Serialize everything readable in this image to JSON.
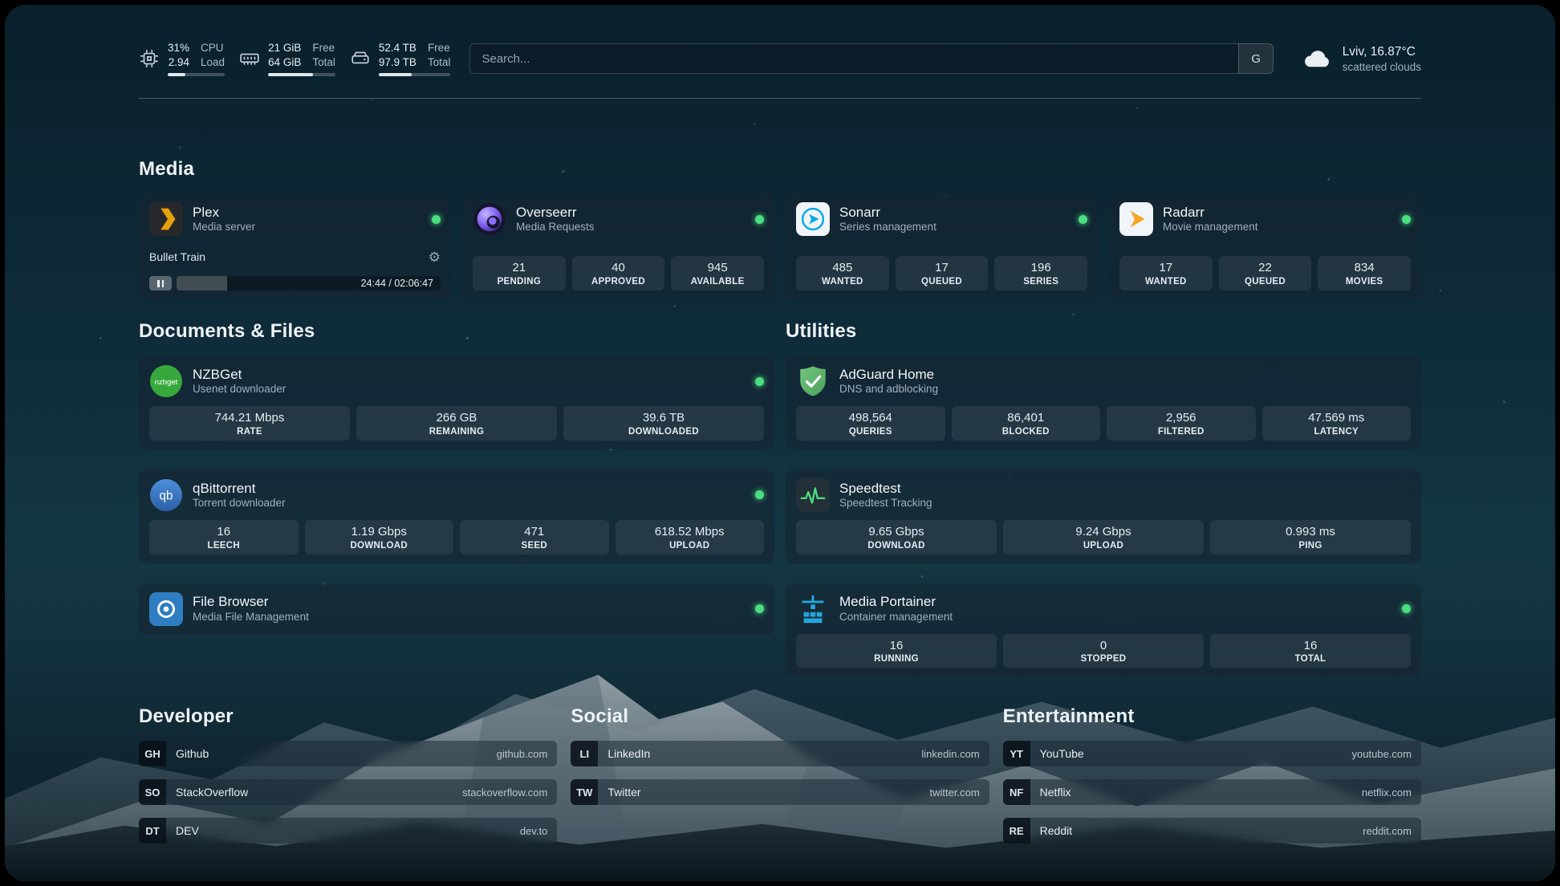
{
  "topbar": {
    "cpu": {
      "row1_value": "31%",
      "row1_label": "CPU",
      "row2_value": "2.94",
      "row2_label": "Load",
      "percent": 31
    },
    "memory": {
      "row1_value": "21 GiB",
      "row1_label": "Free",
      "row2_value": "64 GiB",
      "row2_label": "Total",
      "percent": 67
    },
    "disk": {
      "row1_value": "52.4 TB",
      "row1_label": "Free",
      "row2_value": "97.9 TB",
      "row2_label": "Total",
      "percent": 46
    },
    "search": {
      "placeholder": "Search...",
      "provider": "G"
    },
    "weather": {
      "location": "Lviv, 16.87°C",
      "condition": "scattered clouds"
    }
  },
  "sections": {
    "media": {
      "title": "Media",
      "cards": [
        {
          "name": "Plex",
          "subtitle": "Media server",
          "icon": "plex-icon",
          "online": true,
          "player": {
            "title": "Bullet Train",
            "gear_icon": "⚙",
            "time": "24:44 / 02:06:47",
            "progress_percent": 19
          }
        },
        {
          "name": "Overseerr",
          "subtitle": "Media Requests",
          "icon": "overseerr-icon",
          "online": true,
          "stats": [
            {
              "value": "21",
              "label": "PENDING"
            },
            {
              "value": "40",
              "label": "APPROVED"
            },
            {
              "value": "945",
              "label": "AVAILABLE"
            }
          ]
        },
        {
          "name": "Sonarr",
          "subtitle": "Series management",
          "icon": "sonarr-icon",
          "online": true,
          "stats": [
            {
              "value": "485",
              "label": "WANTED"
            },
            {
              "value": "17",
              "label": "QUEUED"
            },
            {
              "value": "196",
              "label": "SERIES"
            }
          ]
        },
        {
          "name": "Radarr",
          "subtitle": "Movie management",
          "icon": "radarr-icon",
          "online": true,
          "stats": [
            {
              "value": "17",
              "label": "WANTED"
            },
            {
              "value": "22",
              "label": "QUEUED"
            },
            {
              "value": "834",
              "label": "MOVIES"
            }
          ]
        }
      ]
    },
    "documents": {
      "title": "Documents & Files",
      "cards": [
        {
          "name": "NZBGet",
          "subtitle": "Usenet downloader",
          "icon": "nzbget-icon",
          "online": true,
          "stats": [
            {
              "value": "744.21 Mbps",
              "label": "RATE"
            },
            {
              "value": "266 GB",
              "label": "REMAINING"
            },
            {
              "value": "39.6 TB",
              "label": "DOWNLOADED"
            }
          ]
        },
        {
          "name": "qBittorrent",
          "subtitle": "Torrent downloader",
          "icon": "qbittorrent-icon",
          "online": true,
          "stats": [
            {
              "value": "16",
              "label": "LEECH"
            },
            {
              "value": "1.19 Gbps",
              "label": "DOWNLOAD"
            },
            {
              "value": "471",
              "label": "SEED"
            },
            {
              "value": "618.52 Mbps",
              "label": "UPLOAD"
            }
          ]
        },
        {
          "name": "File Browser",
          "subtitle": "Media File Management",
          "icon": "filebrowser-icon",
          "online": true,
          "stats": []
        }
      ]
    },
    "utilities": {
      "title": "Utilities",
      "cards": [
        {
          "name": "AdGuard Home",
          "subtitle": "DNS and adblocking",
          "icon": "adguard-icon",
          "stats": [
            {
              "value": "498,564",
              "label": "QUERIES"
            },
            {
              "value": "86,401",
              "label": "BLOCKED"
            },
            {
              "value": "2,956",
              "label": "FILTERED"
            },
            {
              "value": "47.569 ms",
              "label": "LATENCY"
            }
          ]
        },
        {
          "name": "Speedtest",
          "subtitle": "Speedtest Tracking",
          "icon": "speedtest-icon",
          "stats": [
            {
              "value": "9.65 Gbps",
              "label": "DOWNLOAD"
            },
            {
              "value": "9.24 Gbps",
              "label": "UPLOAD"
            },
            {
              "value": "0.993 ms",
              "label": "PING"
            }
          ]
        },
        {
          "name": "Media Portainer",
          "subtitle": "Container management",
          "icon": "portainer-icon",
          "online": true,
          "stats": [
            {
              "value": "16",
              "label": "RUNNING"
            },
            {
              "value": "0",
              "label": "STOPPED"
            },
            {
              "value": "16",
              "label": "TOTAL"
            }
          ]
        }
      ]
    }
  },
  "bookmarks": [
    {
      "title": "Developer",
      "items": [
        {
          "abbr": "GH",
          "name": "Github",
          "url": "github.com"
        },
        {
          "abbr": "SO",
          "name": "StackOverflow",
          "url": "stackoverflow.com"
        },
        {
          "abbr": "DT",
          "name": "DEV",
          "url": "dev.to"
        }
      ]
    },
    {
      "title": "Social",
      "items": [
        {
          "abbr": "LI",
          "name": "LinkedIn",
          "url": "linkedin.com"
        },
        {
          "abbr": "TW",
          "name": "Twitter",
          "url": "twitter.com"
        }
      ]
    },
    {
      "title": "Entertainment",
      "items": [
        {
          "abbr": "YT",
          "name": "YouTube",
          "url": "youtube.com"
        },
        {
          "abbr": "NF",
          "name": "Netflix",
          "url": "netflix.com"
        },
        {
          "abbr": "RE",
          "name": "Reddit",
          "url": "reddit.com"
        }
      ]
    }
  ],
  "icons": {
    "nzbget_label": "nzbget",
    "qbittorrent_label": "qb"
  },
  "colors": {
    "status_online": "#4ade80",
    "plex_accent": "#e5a00d",
    "progress_fill": "#dfe7ec"
  }
}
